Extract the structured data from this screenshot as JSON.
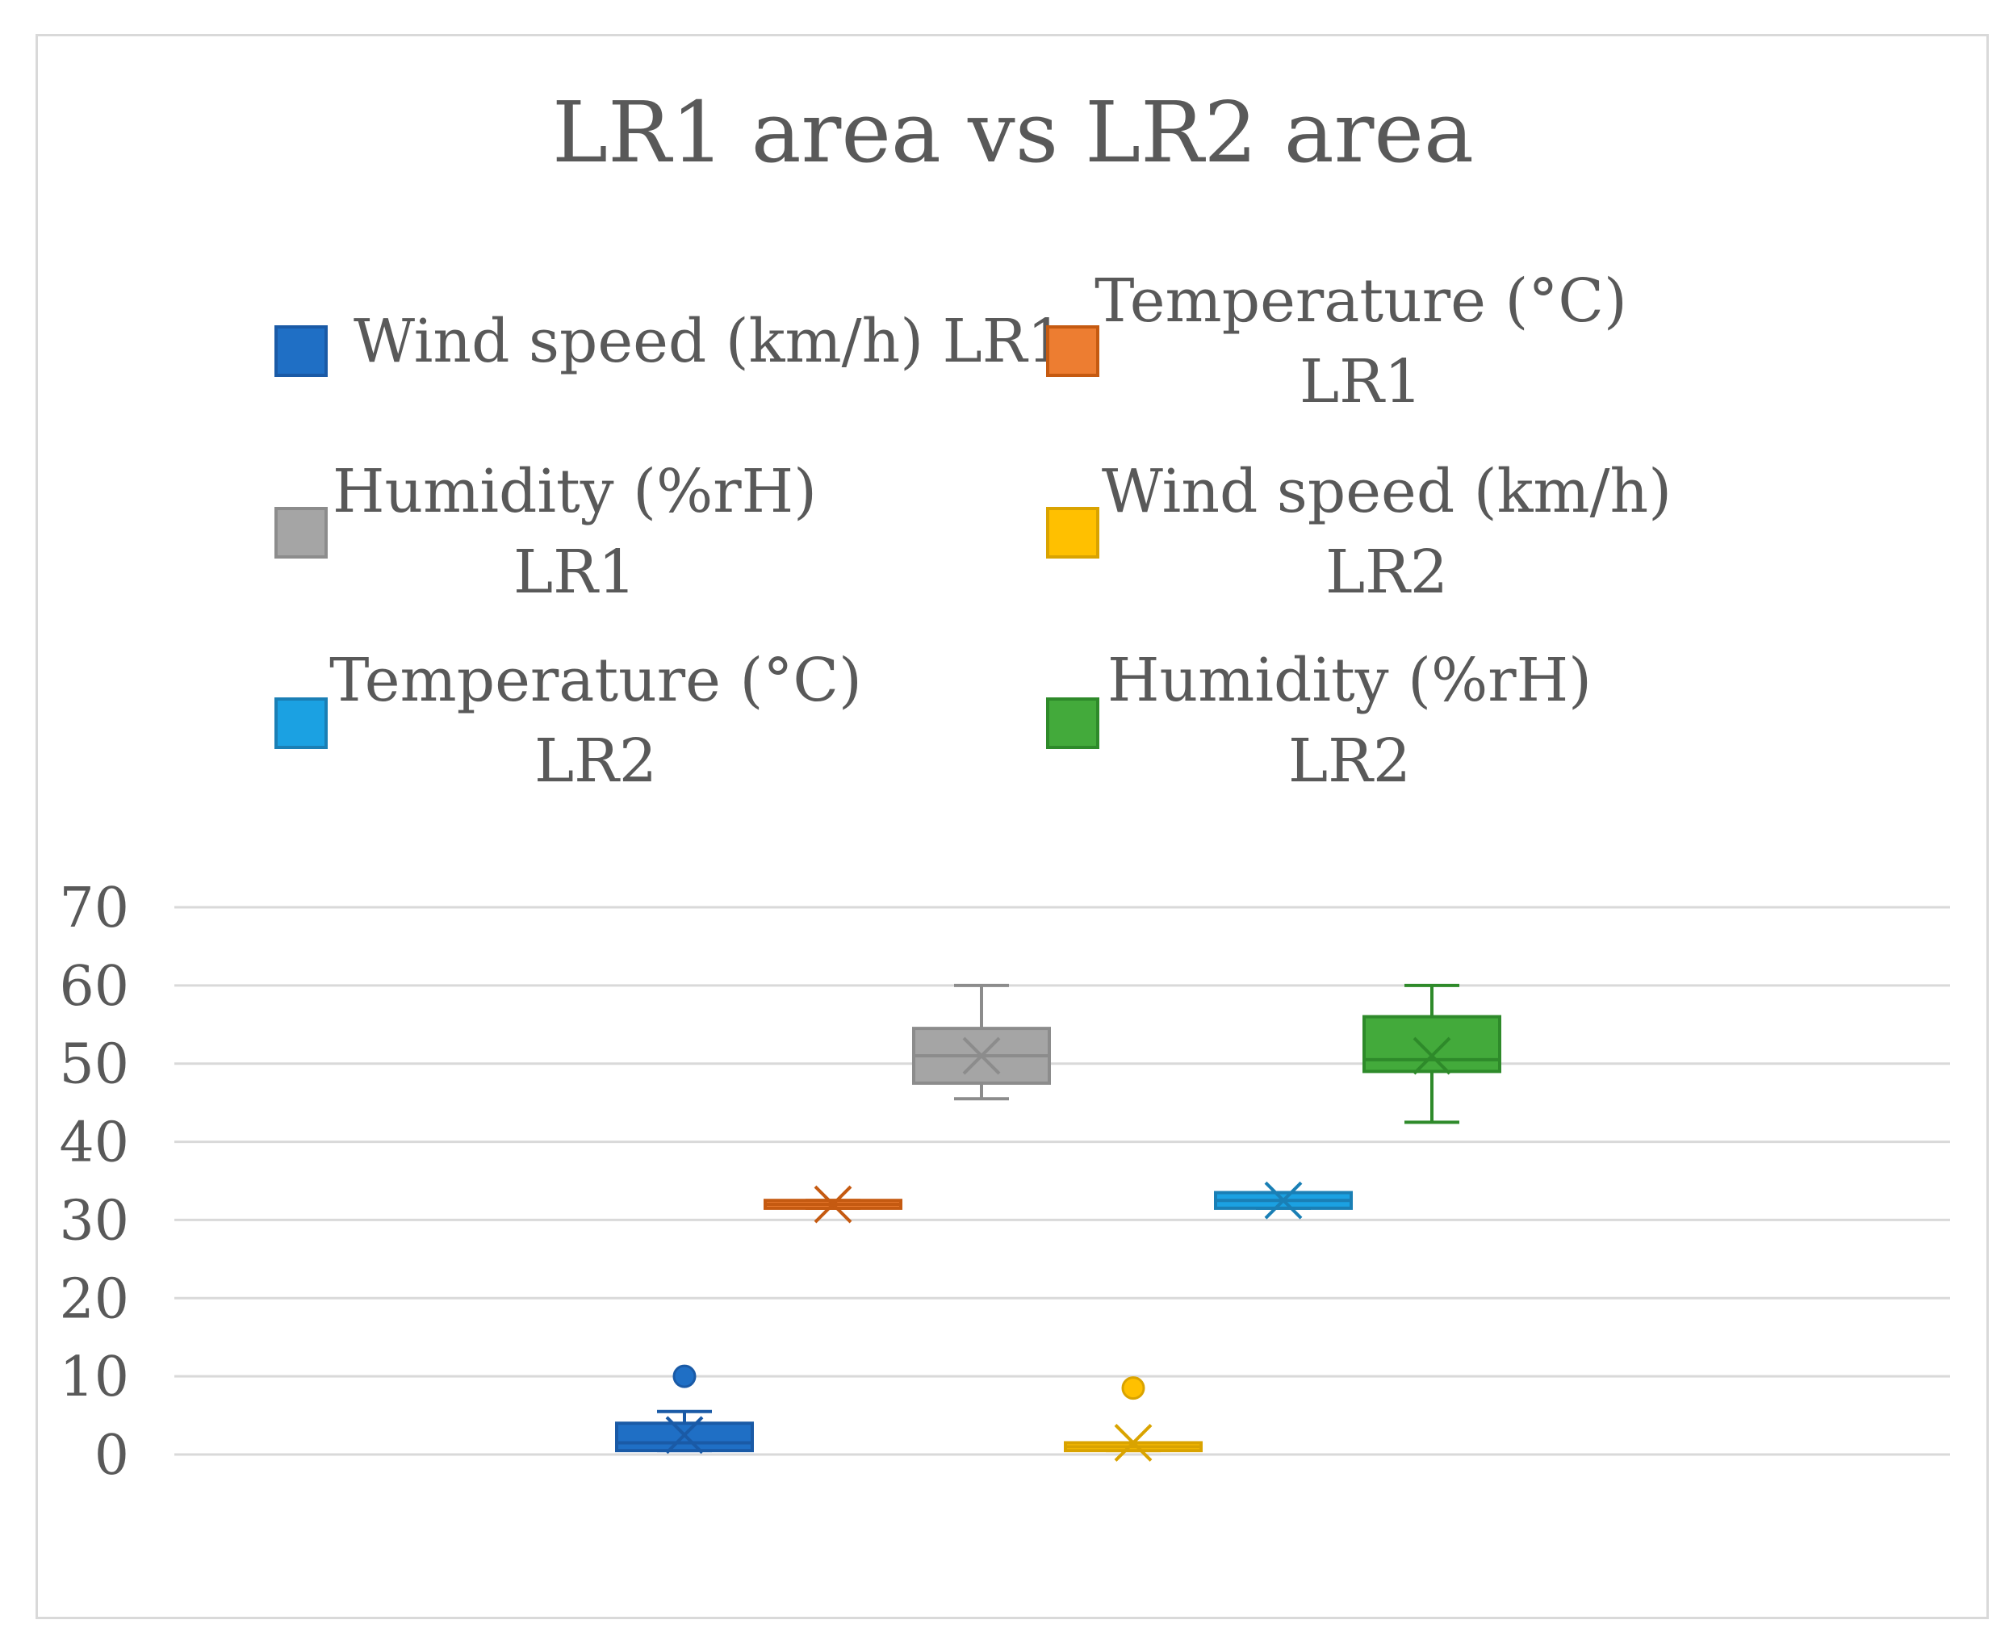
{
  "chart_data": {
    "type": "boxplot",
    "title": "LR1 area vs LR2 area",
    "xlabel": "",
    "ylabel": "",
    "ylim": [
      0,
      70
    ],
    "yticks": [
      0,
      10,
      20,
      30,
      40,
      50,
      60,
      70
    ],
    "grid": true,
    "legend_position": "top",
    "series": [
      {
        "name": "Wind speed (km/h) LR1",
        "legend_lines": [
          "Wind speed (km/h) LR1"
        ],
        "color": "#1f6fc5",
        "edge": "#1a5aa6",
        "min": 0.5,
        "q1": 0.5,
        "median": 1.5,
        "q3": 4,
        "max": 5.5,
        "mean": 2.5,
        "outliers": [
          10
        ]
      },
      {
        "name": "Temperature (°C) LR1",
        "legend_lines": [
          "Temperature (°C)",
          "LR1"
        ],
        "color": "#ed7d31",
        "edge": "#c55a11",
        "min": 31.5,
        "q1": 31.5,
        "median": 32,
        "q3": 32.5,
        "max": 32.5,
        "mean": 32,
        "outliers": []
      },
      {
        "name": "Humidity (%rH) LR1",
        "legend_lines": [
          "Humidity (%rH)",
          "LR1"
        ],
        "color": "#a5a5a5",
        "edge": "#8c8c8c",
        "min": 45.5,
        "q1": 47.5,
        "median": 51,
        "q3": 54.5,
        "max": 60,
        "mean": 51,
        "outliers": []
      },
      {
        "name": "Wind speed (km/h) LR2",
        "legend_lines": [
          "Wind speed (km/h)",
          "LR2"
        ],
        "color": "#ffc000",
        "edge": "#d9a300",
        "min": 0.5,
        "q1": 0.5,
        "median": 1,
        "q3": 1.5,
        "max": 1.5,
        "mean": 1.5,
        "outliers": [
          8.5
        ]
      },
      {
        "name": "Temperature (°C) LR2",
        "legend_lines": [
          "Temperature  (°C)",
          "LR2"
        ],
        "color": "#1ba1e2",
        "edge": "#1a7fb5",
        "min": 31.5,
        "q1": 31.5,
        "median": 32.5,
        "q3": 33.5,
        "max": 33.5,
        "mean": 32.5,
        "outliers": []
      },
      {
        "name": "Humidity (%rH) LR2",
        "legend_lines": [
          "Humidity (%rH)",
          "LR2"
        ],
        "color": "#43aa3b",
        "edge": "#2e8a2a",
        "min": 42.5,
        "q1": 49,
        "median": 50.5,
        "q3": 56,
        "max": 60,
        "mean": 51,
        "outliers": []
      }
    ]
  }
}
